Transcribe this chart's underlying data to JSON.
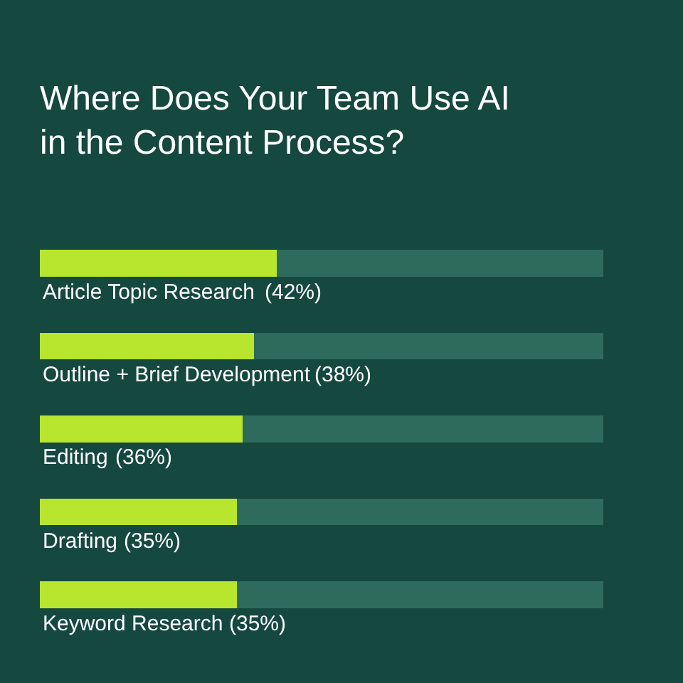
{
  "chart_data": {
    "type": "bar",
    "orientation": "horizontal",
    "stacked": true,
    "title": "Where Does Your Team Use AI\nin the Content Process?",
    "categories": [
      "Article Topic Research",
      "Outline + Brief Development",
      "Editing",
      "Drafting",
      "Keyword Research"
    ],
    "series": [
      {
        "color": "#b8e62e",
        "values": [
          42,
          38,
          36,
          35,
          35
        ],
        "value_labels": [
          "(42%)",
          "(38%)",
          "(36%)",
          "(35%)",
          "(35%)"
        ]
      },
      {
        "color": "#2e6b5c",
        "values": [
          58,
          62,
          64,
          65,
          65
        ]
      }
    ],
    "xlim": [
      0,
      100
    ],
    "tick_labels": false,
    "grid": false
  }
}
